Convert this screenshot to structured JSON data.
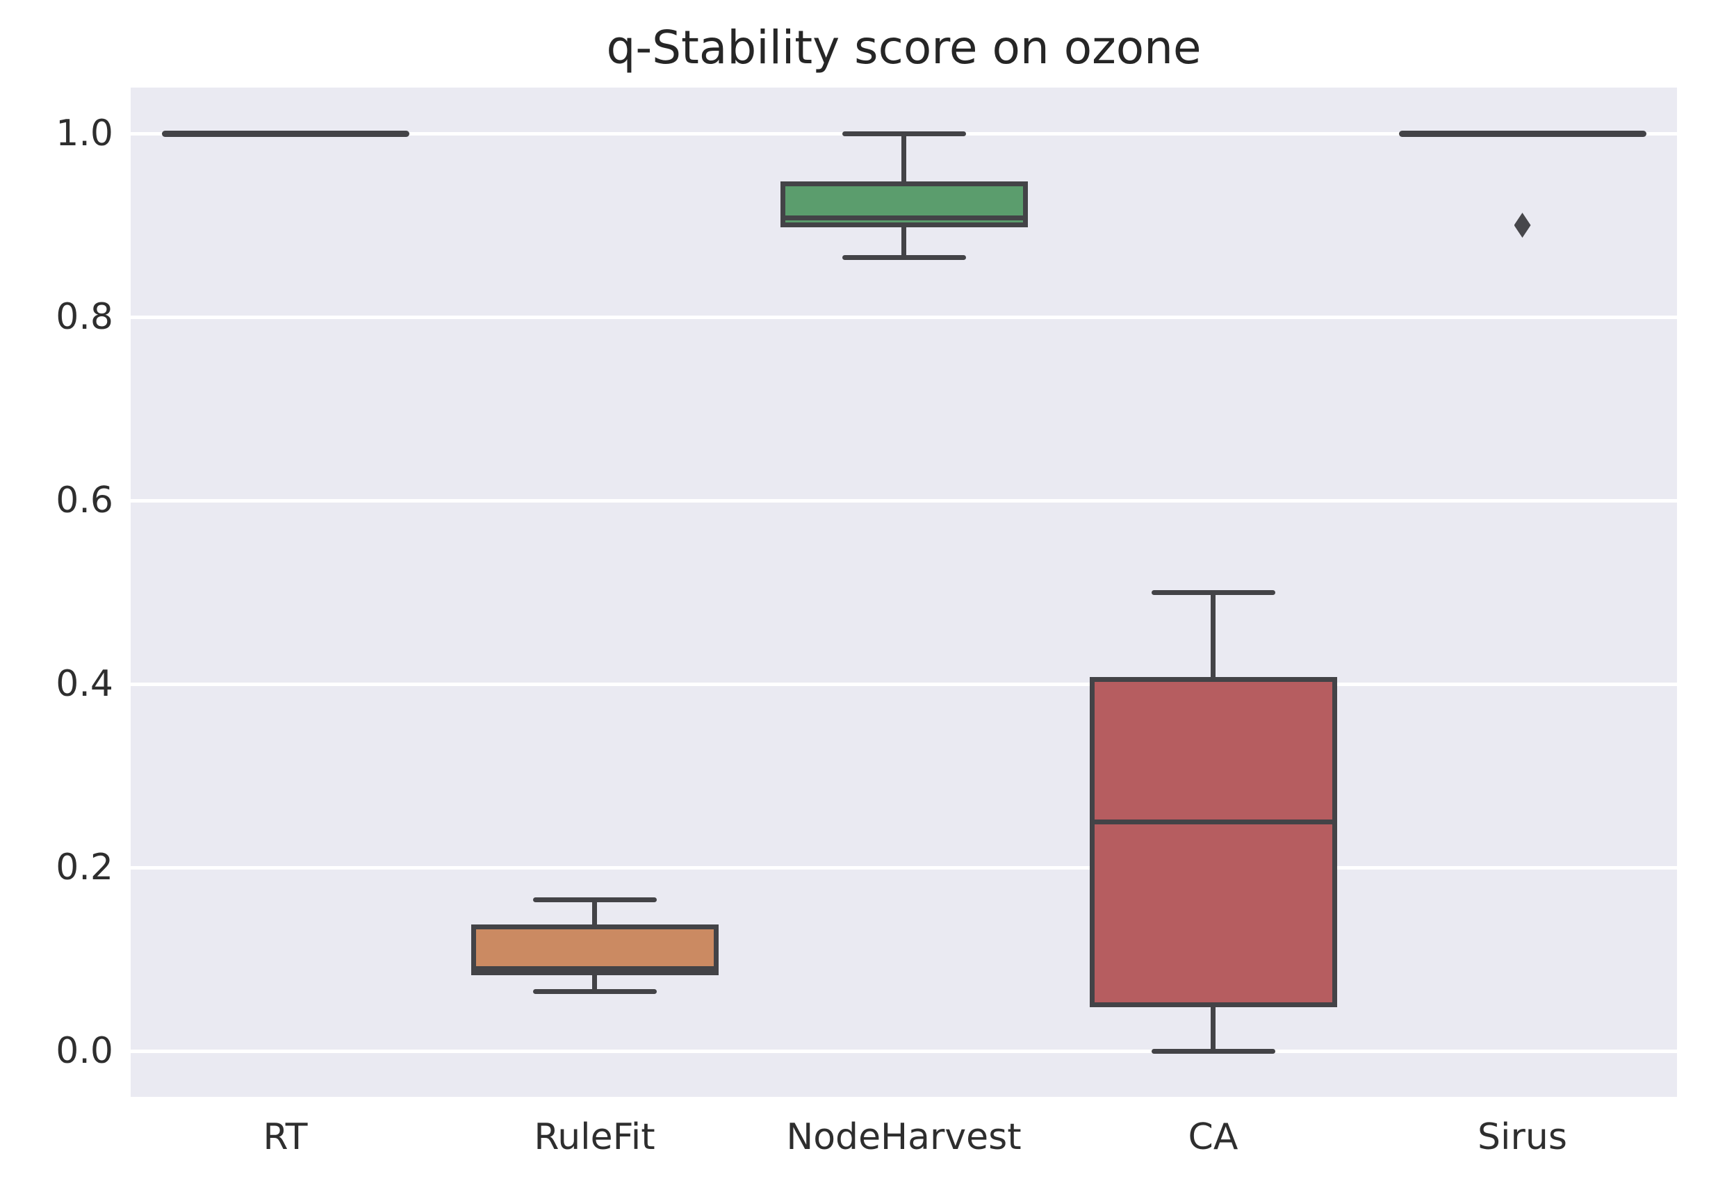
{
  "title": "q-Stability score on ozone",
  "colors": {
    "figure_background": "#ffffff",
    "plot_background": "#eaeaf2",
    "gridline": "#ffffff",
    "line_color": "#434347",
    "text_color": "#262626",
    "rulefit_box": "#cb8a62",
    "nodeharvest_box": "#5b9d6d",
    "ca_box": "#b65d60"
  },
  "chart_data": {
    "type": "boxplot",
    "title": "q-Stability score on ozone",
    "xlabel": "",
    "ylabel": "",
    "categories": [
      "RT",
      "RuleFit",
      "NodeHarvest",
      "CA",
      "Sirus"
    ],
    "ylim": [
      -0.05,
      1.05
    ],
    "yticks": [
      1.0,
      0.8,
      0.6,
      0.4,
      0.2,
      0.0
    ],
    "ytick_labels": [
      "1.0",
      "0.8",
      "0.6",
      "0.4",
      "0.2",
      "0.0"
    ],
    "grid": "horizontal",
    "legend": "none",
    "boxes": [
      {
        "label": "RT",
        "min": 1.0,
        "q1": 1.0,
        "median": 1.0,
        "q3": 1.0,
        "max": 1.0,
        "outliers": [],
        "color": null
      },
      {
        "label": "RuleFit",
        "min": 0.065,
        "q1": 0.085,
        "median": 0.09,
        "q3": 0.135,
        "max": 0.165,
        "outliers": [],
        "color": "#cb8a62"
      },
      {
        "label": "NodeHarvest",
        "min": 0.865,
        "q1": 0.9,
        "median": 0.908,
        "q3": 0.945,
        "max": 1.0,
        "outliers": [],
        "color": "#5b9d6d"
      },
      {
        "label": "CA",
        "min": 0.0,
        "q1": 0.05,
        "median": 0.25,
        "q3": 0.405,
        "max": 0.5,
        "outliers": [],
        "color": "#b65d60"
      },
      {
        "label": "Sirus",
        "min": 1.0,
        "q1": 1.0,
        "median": 1.0,
        "q3": 1.0,
        "max": 1.0,
        "outliers": [
          0.9
        ],
        "color": null
      }
    ]
  }
}
